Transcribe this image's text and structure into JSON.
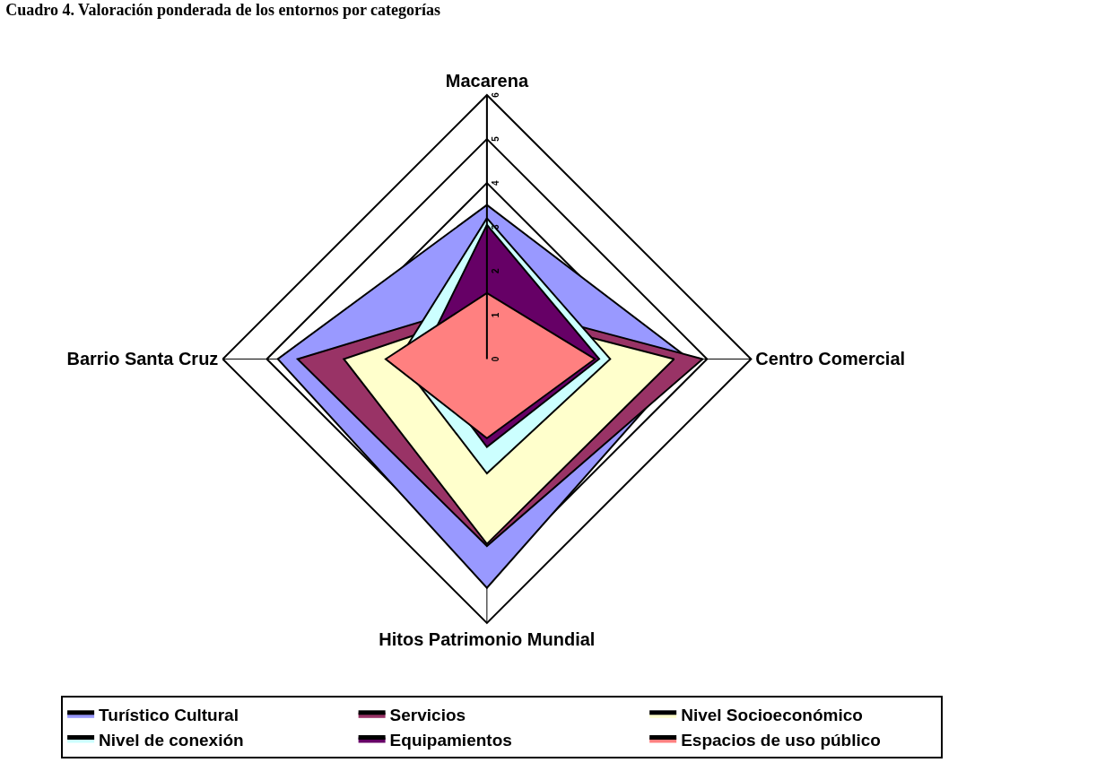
{
  "chart_data": {
    "type": "radar",
    "title": "Cuadro 4. Valoración ponderada de los entornos por categorías",
    "categories": [
      "Macarena",
      "Centro Comercial",
      "Hitos Patrimonio Mundial",
      "Barrio Santa Cruz"
    ],
    "series": [
      {
        "name": "Turístico Cultural",
        "color": "#9999ff",
        "values": [
          3.5,
          4.6,
          5.2,
          4.75
        ]
      },
      {
        "name": "Servicios",
        "color": "#993366",
        "values": [
          1.3,
          4.9,
          4.25,
          4.3
        ]
      },
      {
        "name": "Nivel Socioeconómico",
        "color": "#ffffcc",
        "values": [
          1.1,
          4.25,
          4.2,
          3.25
        ]
      },
      {
        "name": "Nivel de conexión",
        "color": "#ccffff",
        "values": [
          3.2,
          2.8,
          2.6,
          2.0
        ]
      },
      {
        "name": "Equipamientos",
        "color": "#660066",
        "values": [
          3.05,
          2.55,
          2.0,
          1.5
        ]
      },
      {
        "name": "Espacios de uso público",
        "color": "#ff8080",
        "values": [
          1.5,
          2.45,
          1.8,
          2.3
        ]
      }
    ],
    "ylim": [
      0,
      6
    ],
    "yticks": [
      0,
      1,
      2,
      3,
      4,
      5,
      6
    ],
    "grid": true,
    "legend": "bottom"
  }
}
